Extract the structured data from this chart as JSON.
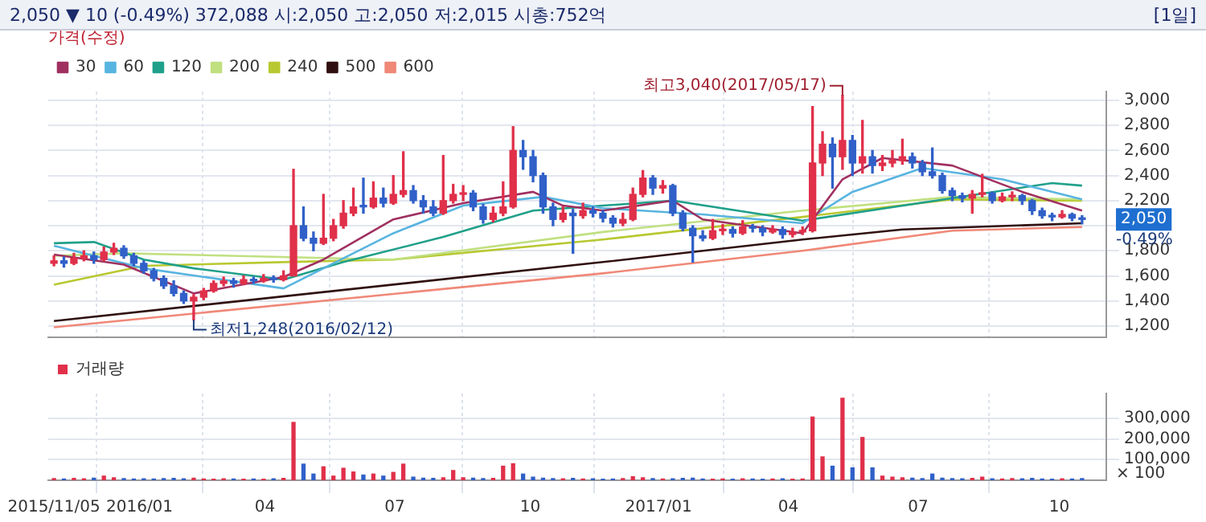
{
  "chart_data": [
    {
      "type": "candlestick",
      "title": "2,050 ▼ 10 (-0.49%)  372,088  시:2,050  고:2,050  저:2,015  시총:752억",
      "subtitle": "[1일]",
      "legend_title": "가격(수정)",
      "legend": "top left",
      "grid": true,
      "tick_labels": "y",
      "marker": "none",
      "x": [
        "2015-11-05",
        "2015-11-12",
        "2015-11-19",
        "2015-11-26",
        "2015-12-03",
        "2015-12-10",
        "2015-12-17",
        "2015-12-24",
        "2015-12-31",
        "2016-01-07",
        "2016-01-14",
        "2016-01-21",
        "2016-01-28",
        "2016-02-04",
        "2016-02-11",
        "2016-02-18",
        "2016-02-25",
        "2016-03-03",
        "2016-03-10",
        "2016-03-17",
        "2016-03-24",
        "2016-03-31",
        "2016-04-07",
        "2016-04-14",
        "2016-04-21",
        "2016-04-28",
        "2016-05-05",
        "2016-05-12",
        "2016-05-19",
        "2016-05-26",
        "2016-06-02",
        "2016-06-09",
        "2016-06-16",
        "2016-06-23",
        "2016-06-30",
        "2016-07-07",
        "2016-07-14",
        "2016-07-21",
        "2016-07-28",
        "2016-08-04",
        "2016-08-11",
        "2016-08-18",
        "2016-08-25",
        "2016-09-01",
        "2016-09-08",
        "2016-09-15",
        "2016-09-22",
        "2016-09-29",
        "2016-10-06",
        "2016-10-13",
        "2016-10-20",
        "2016-10-27",
        "2016-11-03",
        "2016-11-10",
        "2016-11-17",
        "2016-11-24",
        "2016-12-01",
        "2016-12-08",
        "2016-12-15",
        "2016-12-22",
        "2016-12-29",
        "2017-01-05",
        "2017-01-12",
        "2017-01-19",
        "2017-01-26",
        "2017-02-02",
        "2017-02-09",
        "2017-02-16",
        "2017-02-23",
        "2017-03-02",
        "2017-03-09",
        "2017-03-16",
        "2017-03-23",
        "2017-03-30",
        "2017-04-06",
        "2017-04-13",
        "2017-04-20",
        "2017-04-27",
        "2017-05-04",
        "2017-05-11",
        "2017-05-18",
        "2017-05-25",
        "2017-06-01",
        "2017-06-08",
        "2017-06-15",
        "2017-06-22",
        "2017-06-29",
        "2017-07-06",
        "2017-07-13",
        "2017-07-20",
        "2017-07-27",
        "2017-08-03",
        "2017-08-10",
        "2017-08-17",
        "2017-08-24",
        "2017-08-31",
        "2017-09-07",
        "2017-09-14",
        "2017-09-21",
        "2017-09-28",
        "2017-10-05",
        "2017-10-12",
        "2017-10-19",
        "2017-10-26"
      ],
      "ohlc": [
        [
          1700,
          1760,
          1680,
          1720
        ],
        [
          1720,
          1750,
          1670,
          1700
        ],
        [
          1700,
          1780,
          1690,
          1740
        ],
        [
          1740,
          1800,
          1720,
          1760
        ],
        [
          1760,
          1790,
          1700,
          1730
        ],
        [
          1730,
          1830,
          1720,
          1790
        ],
        [
          1790,
          1860,
          1770,
          1820
        ],
        [
          1820,
          1840,
          1740,
          1760
        ],
        [
          1760,
          1780,
          1680,
          1700
        ],
        [
          1700,
          1720,
          1620,
          1640
        ],
        [
          1640,
          1660,
          1560,
          1580
        ],
        [
          1580,
          1600,
          1500,
          1520
        ],
        [
          1520,
          1560,
          1440,
          1460
        ],
        [
          1460,
          1480,
          1380,
          1400
        ],
        [
          1400,
          1450,
          1248,
          1430
        ],
        [
          1430,
          1500,
          1410,
          1480
        ],
        [
          1480,
          1560,
          1470,
          1540
        ],
        [
          1540,
          1590,
          1520,
          1560
        ],
        [
          1560,
          1580,
          1510,
          1540
        ],
        [
          1540,
          1600,
          1530,
          1570
        ],
        [
          1570,
          1590,
          1540,
          1560
        ],
        [
          1560,
          1610,
          1550,
          1580
        ],
        [
          1580,
          1600,
          1550,
          1570
        ],
        [
          1570,
          1640,
          1560,
          1600
        ],
        [
          1600,
          2450,
          1600,
          2000
        ],
        [
          2000,
          2150,
          1880,
          1900
        ],
        [
          1900,
          1950,
          1800,
          1860
        ],
        [
          1860,
          2250,
          1850,
          1900
        ],
        [
          1900,
          2050,
          1880,
          2000
        ],
        [
          2000,
          2200,
          1980,
          2100
        ],
        [
          2100,
          2300,
          2080,
          2150
        ],
        [
          2150,
          2380,
          2100,
          2150
        ],
        [
          2150,
          2350,
          2140,
          2220
        ],
        [
          2220,
          2300,
          2150,
          2180
        ],
        [
          2180,
          2400,
          2170,
          2250
        ],
        [
          2250,
          2590,
          2230,
          2280
        ],
        [
          2280,
          2320,
          2180,
          2200
        ],
        [
          2200,
          2240,
          2100,
          2150
        ],
        [
          2150,
          2200,
          2080,
          2100
        ],
        [
          2100,
          2560,
          2090,
          2200
        ],
        [
          2200,
          2330,
          2180,
          2250
        ],
        [
          2250,
          2320,
          2200,
          2260
        ],
        [
          2260,
          2280,
          2120,
          2150
        ],
        [
          2150,
          2170,
          2020,
          2050
        ],
        [
          2050,
          2150,
          2030,
          2100
        ],
        [
          2100,
          2350,
          2080,
          2150
        ],
        [
          2150,
          2790,
          2140,
          2600
        ],
        [
          2600,
          2680,
          2450,
          2550
        ],
        [
          2550,
          2600,
          2350,
          2400
        ],
        [
          2400,
          2420,
          2100,
          2150
        ],
        [
          2150,
          2180,
          2000,
          2050
        ],
        [
          2050,
          2150,
          2030,
          2100
        ],
        [
          2100,
          2130,
          1780,
          2080
        ],
        [
          2080,
          2180,
          2060,
          2120
        ],
        [
          2120,
          2150,
          2070,
          2100
        ],
        [
          2100,
          2120,
          2030,
          2060
        ],
        [
          2060,
          2080,
          1990,
          2020
        ],
        [
          2020,
          2100,
          2000,
          2050
        ],
        [
          2050,
          2300,
          2040,
          2250
        ],
        [
          2250,
          2440,
          2230,
          2380
        ],
        [
          2380,
          2400,
          2250,
          2300
        ],
        [
          2300,
          2360,
          2260,
          2320
        ],
        [
          2320,
          2330,
          2080,
          2100
        ],
        [
          2100,
          2120,
          1960,
          1980
        ],
        [
          1980,
          2000,
          1710,
          1920
        ],
        [
          1920,
          1960,
          1880,
          1900
        ],
        [
          1900,
          2050,
          1890,
          1960
        ],
        [
          1960,
          2010,
          1930,
          1970
        ],
        [
          1970,
          1990,
          1910,
          1940
        ],
        [
          1940,
          2040,
          1930,
          1990
        ],
        [
          1990,
          2010,
          1950,
          1980
        ],
        [
          1980,
          2000,
          1920,
          1950
        ],
        [
          1950,
          2000,
          1940,
          1970
        ],
        [
          1970,
          1990,
          1900,
          1930
        ],
        [
          1930,
          1980,
          1910,
          1950
        ],
        [
          1950,
          1990,
          1930,
          1960
        ],
        [
          1960,
          2950,
          1950,
          2500
        ],
        [
          2500,
          2750,
          2400,
          2650
        ],
        [
          2650,
          2700,
          2300,
          2550
        ],
        [
          2550,
          3040,
          2450,
          2680
        ],
        [
          2680,
          2720,
          2400,
          2500
        ],
        [
          2500,
          2840,
          2420,
          2550
        ],
        [
          2550,
          2600,
          2420,
          2480
        ],
        [
          2480,
          2560,
          2440,
          2500
        ],
        [
          2500,
          2600,
          2470,
          2520
        ],
        [
          2520,
          2690,
          2490,
          2550
        ],
        [
          2550,
          2580,
          2460,
          2500
        ],
        [
          2500,
          2520,
          2400,
          2430
        ],
        [
          2430,
          2620,
          2380,
          2400
        ],
        [
          2400,
          2420,
          2260,
          2280
        ],
        [
          2280,
          2300,
          2200,
          2240
        ],
        [
          2240,
          2260,
          2190,
          2220
        ],
        [
          2220,
          2280,
          2100,
          2250
        ],
        [
          2250,
          2410,
          2230,
          2260
        ],
        [
          2260,
          2270,
          2180,
          2200
        ],
        [
          2200,
          2260,
          2190,
          2230
        ],
        [
          2230,
          2270,
          2200,
          2240
        ],
        [
          2240,
          2250,
          2170,
          2200
        ],
        [
          2200,
          2210,
          2090,
          2120
        ],
        [
          2120,
          2140,
          2060,
          2080
        ],
        [
          2080,
          2100,
          2040,
          2070
        ],
        [
          2070,
          2120,
          2060,
          2090
        ],
        [
          2090,
          2100,
          2040,
          2060
        ],
        [
          2060,
          2080,
          2015,
          2050
        ]
      ],
      "colors": [
        "#e0304a",
        "#3060c8",
        "#e0304a",
        "#e0304a",
        "#3060c8",
        "#e0304a",
        "#e0304a",
        "#3060c8",
        "#3060c8",
        "#3060c8",
        "#3060c8",
        "#3060c8",
        "#3060c8",
        "#3060c8",
        "#e0304a",
        "#e0304a",
        "#e0304a",
        "#e0304a",
        "#3060c8",
        "#e0304a",
        "#3060c8",
        "#e0304a",
        "#3060c8",
        "#e0304a",
        "#e0304a",
        "#3060c8",
        "#3060c8",
        "#e0304a",
        "#e0304a",
        "#e0304a",
        "#e0304a",
        "#3060c8",
        "#e0304a",
        "#3060c8",
        "#e0304a",
        "#e0304a",
        "#3060c8",
        "#3060c8",
        "#3060c8",
        "#e0304a",
        "#e0304a",
        "#e0304a",
        "#3060c8",
        "#3060c8",
        "#e0304a",
        "#e0304a",
        "#e0304a",
        "#3060c8",
        "#3060c8",
        "#3060c8",
        "#3060c8",
        "#e0304a",
        "#3060c8",
        "#e0304a",
        "#3060c8",
        "#3060c8",
        "#3060c8",
        "#e0304a",
        "#e0304a",
        "#e0304a",
        "#3060c8",
        "#e0304a",
        "#3060c8",
        "#3060c8",
        "#3060c8",
        "#3060c8",
        "#e0304a",
        "#e0304a",
        "#3060c8",
        "#e0304a",
        "#3060c8",
        "#3060c8",
        "#e0304a",
        "#3060c8",
        "#e0304a",
        "#e0304a",
        "#e0304a",
        "#e0304a",
        "#3060c8",
        "#e0304a",
        "#3060c8",
        "#e0304a",
        "#3060c8",
        "#e0304a",
        "#e0304a",
        "#e0304a",
        "#3060c8",
        "#3060c8",
        "#3060c8",
        "#3060c8",
        "#3060c8",
        "#3060c8",
        "#e0304a",
        "#e0304a",
        "#3060c8",
        "#e0304a",
        "#e0304a",
        "#3060c8",
        "#3060c8",
        "#3060c8",
        "#3060c8",
        "#e0304a",
        "#3060c8",
        "#3060c8"
      ],
      "series": [
        {
          "name": "30",
          "type": "line",
          "color": "#a03060",
          "x": [
            "2015-11-05",
            "2015-12-24",
            "2016-02-11",
            "2016-04-14",
            "2016-05-12",
            "2016-06-30",
            "2016-08-18",
            "2016-10-06",
            "2016-10-27",
            "2016-11-24",
            "2017-01-12",
            "2017-02-02",
            "2017-04-13",
            "2017-05-11",
            "2017-06-08",
            "2017-07-27",
            "2017-09-14",
            "2017-10-26"
          ],
          "values": [
            1770,
            1690,
            1460,
            1590,
            1730,
            2050,
            2180,
            2270,
            2160,
            2120,
            2200,
            2050,
            1940,
            2370,
            2540,
            2480,
            2270,
            2120
          ]
        },
        {
          "name": "60",
          "type": "line",
          "color": "#58b4e0",
          "x": [
            "2015-11-05",
            "2016-01-07",
            "2016-04-14",
            "2016-05-12",
            "2016-06-30",
            "2016-08-18",
            "2016-10-13",
            "2016-11-24",
            "2017-02-02",
            "2017-04-13",
            "2017-05-18",
            "2017-07-06",
            "2017-08-31",
            "2017-10-26"
          ],
          "values": [
            1840,
            1660,
            1500,
            1660,
            1940,
            2160,
            2230,
            2140,
            2090,
            2020,
            2270,
            2460,
            2370,
            2210
          ]
        },
        {
          "name": "120",
          "type": "line",
          "color": "#20a08a",
          "x": [
            "2015-11-05",
            "2015-12-03",
            "2016-01-07",
            "2016-02-11",
            "2016-04-14",
            "2016-05-26",
            "2016-08-04",
            "2016-10-06",
            "2016-11-24",
            "2017-01-12",
            "2017-04-13",
            "2017-07-27",
            "2017-10-05",
            "2017-10-26"
          ],
          "values": [
            1860,
            1870,
            1730,
            1660,
            1570,
            1710,
            1910,
            2120,
            2160,
            2200,
            2040,
            2220,
            2340,
            2320
          ]
        },
        {
          "name": "200",
          "type": "line",
          "color": "#c0e080",
          "x": [
            "2015-11-05",
            "2015-12-24",
            "2016-06-30",
            "2016-11-24",
            "2017-04-13",
            "2017-07-27",
            "2017-10-26"
          ],
          "values": [
            1760,
            1780,
            1730,
            1950,
            2120,
            2230,
            2210
          ]
        },
        {
          "name": "240",
          "type": "line",
          "color": "#b8c830",
          "x": [
            "2015-11-05",
            "2016-01-07",
            "2016-04-14",
            "2016-06-30",
            "2016-11-24",
            "2017-04-13",
            "2017-07-27",
            "2017-10-26"
          ],
          "values": [
            1530,
            1680,
            1710,
            1730,
            1890,
            2070,
            2210,
            2200
          ]
        },
        {
          "name": "500",
          "type": "line",
          "color": "#301010",
          "x": [
            "2015-11-05",
            "2016-11-24",
            "2017-04-13",
            "2017-06-22",
            "2017-10-26"
          ],
          "values": [
            1240,
            1710,
            1890,
            1970,
            2020
          ]
        },
        {
          "name": "600",
          "type": "line",
          "color": "#f08878",
          "x": [
            "2015-11-05",
            "2016-11-24",
            "2017-04-13",
            "2017-07-27",
            "2017-10-26"
          ],
          "values": [
            1190,
            1620,
            1800,
            1960,
            1990
          ]
        }
      ],
      "annotations": [
        {
          "text": "최고3,040(2017/05/17)",
          "x": "2017-05-11",
          "y": 3040
        },
        {
          "text": "최저1,248(2016/02/12)",
          "x": "2016-02-11",
          "y": 1248
        },
        "2,050",
        "-0.49%"
      ],
      "xlim": [
        "2015-11-01",
        "2017-11-12"
      ],
      "xticks": [
        {
          "value": "2015-11-05",
          "label": null
        },
        {
          "value": "2016-01-04",
          "label": null
        },
        {
          "value": "2016-04-01",
          "label": null
        },
        {
          "value": "2016-07-01",
          "label": null
        },
        {
          "value": "2016-10-04",
          "label": null
        },
        {
          "value": "2017-01-02",
          "label": null
        },
        {
          "value": "2017-04-03",
          "label": null
        },
        {
          "value": "2017-07-03",
          "label": null
        },
        {
          "value": "2017-10-10",
          "label": null
        }
      ],
      "ylim": [
        1110,
        3070
      ],
      "yticks": [
        {
          "value": 1200,
          "label": "1,200"
        },
        {
          "value": 1400,
          "label": "1,400"
        },
        {
          "value": 1600,
          "label": "1,600"
        },
        {
          "value": 1800,
          "label": "1,800"
        },
        {
          "value": 2000,
          "label": null
        },
        {
          "value": 2200,
          "label": "2,200"
        },
        {
          "value": 2400,
          "label": "2,400"
        },
        {
          "value": 2600,
          "label": "2,600"
        },
        {
          "value": 2800,
          "label": "2,800"
        },
        {
          "value": 3000,
          "label": "3,000"
        }
      ]
    },
    {
      "type": "bar",
      "legend": "top left",
      "grid": true,
      "x": [
        "2015-11-05",
        "2015-11-12",
        "2015-11-19",
        "2015-11-26",
        "2015-12-03",
        "2015-12-10",
        "2015-12-17",
        "2015-12-24",
        "2015-12-31",
        "2016-01-07",
        "2016-01-14",
        "2016-01-21",
        "2016-01-28",
        "2016-02-04",
        "2016-02-11",
        "2016-02-18",
        "2016-02-25",
        "2016-03-03",
        "2016-03-10",
        "2016-03-17",
        "2016-03-24",
        "2016-03-31",
        "2016-04-07",
        "2016-04-14",
        "2016-04-21",
        "2016-04-28",
        "2016-05-05",
        "2016-05-12",
        "2016-05-19",
        "2016-05-26",
        "2016-06-02",
        "2016-06-09",
        "2016-06-16",
        "2016-06-23",
        "2016-06-30",
        "2016-07-07",
        "2016-07-14",
        "2016-07-21",
        "2016-07-28",
        "2016-08-04",
        "2016-08-11",
        "2016-08-18",
        "2016-08-25",
        "2016-09-01",
        "2016-09-08",
        "2016-09-15",
        "2016-09-22",
        "2016-09-29",
        "2016-10-06",
        "2016-10-13",
        "2016-10-20",
        "2016-10-27",
        "2016-11-03",
        "2016-11-10",
        "2016-11-17",
        "2016-11-24",
        "2016-12-01",
        "2016-12-08",
        "2016-12-15",
        "2016-12-22",
        "2016-12-29",
        "2017-01-05",
        "2017-01-12",
        "2017-01-19",
        "2017-01-26",
        "2017-02-02",
        "2017-02-09",
        "2017-02-16",
        "2017-02-23",
        "2017-03-02",
        "2017-03-09",
        "2017-03-16",
        "2017-03-23",
        "2017-03-30",
        "2017-04-06",
        "2017-04-13",
        "2017-04-20",
        "2017-04-27",
        "2017-05-04",
        "2017-05-11",
        "2017-05-18",
        "2017-05-25",
        "2017-06-01",
        "2017-06-08",
        "2017-06-15",
        "2017-06-22",
        "2017-06-29",
        "2017-07-06",
        "2017-07-13",
        "2017-07-20",
        "2017-07-27",
        "2017-08-03",
        "2017-08-10",
        "2017-08-17",
        "2017-08-24",
        "2017-08-31",
        "2017-09-07",
        "2017-09-14",
        "2017-09-21",
        "2017-09-28",
        "2017-10-05",
        "2017-10-12",
        "2017-10-19",
        "2017-10-26"
      ],
      "series": [
        {
          "name": "거래량",
          "color": "#c8a020",
          "values": [
            8000,
            6000,
            9000,
            7000,
            10000,
            20000,
            12000,
            8000,
            6000,
            7000,
            6000,
            8000,
            9000,
            7000,
            10000,
            6000,
            5000,
            7000,
            6000,
            5000,
            6000,
            5000,
            7000,
            9000,
            280000,
            78000,
            30000,
            65000,
            20000,
            58000,
            40000,
            25000,
            30000,
            20000,
            38000,
            78000,
            15000,
            10000,
            9000,
            12000,
            47000,
            12000,
            10000,
            8000,
            9000,
            68000,
            80000,
            30000,
            15000,
            10000,
            8000,
            7000,
            9000,
            6000,
            7000,
            5000,
            6000,
            8000,
            17000,
            12000,
            8000,
            6000,
            7000,
            9000,
            10000,
            6000,
            5000,
            6000,
            5000,
            7000,
            6000,
            5000,
            6000,
            7000,
            5000,
            6000,
            306000,
            113000,
            68000,
            397000,
            60000,
            207000,
            60000,
            20000,
            15000,
            12000,
            10000,
            8000,
            30000,
            10000,
            8000,
            7000,
            9000,
            15000,
            7000,
            6000,
            8000,
            7000,
            9000,
            6000,
            5000,
            7000,
            6000,
            8000
          ],
          "colors": [
            "#e0304a",
            "#3060c8",
            "#e0304a",
            "#e0304a",
            "#3060c8",
            "#e0304a",
            "#e0304a",
            "#3060c8",
            "#3060c8",
            "#3060c8",
            "#3060c8",
            "#3060c8",
            "#3060c8",
            "#3060c8",
            "#e0304a",
            "#e0304a",
            "#e0304a",
            "#e0304a",
            "#3060c8",
            "#e0304a",
            "#3060c8",
            "#e0304a",
            "#3060c8",
            "#e0304a",
            "#e0304a",
            "#3060c8",
            "#3060c8",
            "#e0304a",
            "#e0304a",
            "#e0304a",
            "#e0304a",
            "#3060c8",
            "#e0304a",
            "#3060c8",
            "#e0304a",
            "#e0304a",
            "#3060c8",
            "#3060c8",
            "#3060c8",
            "#e0304a",
            "#e0304a",
            "#e0304a",
            "#3060c8",
            "#3060c8",
            "#e0304a",
            "#e0304a",
            "#e0304a",
            "#3060c8",
            "#3060c8",
            "#3060c8",
            "#3060c8",
            "#e0304a",
            "#3060c8",
            "#e0304a",
            "#3060c8",
            "#3060c8",
            "#3060c8",
            "#e0304a",
            "#e0304a",
            "#e0304a",
            "#3060c8",
            "#e0304a",
            "#3060c8",
            "#3060c8",
            "#3060c8",
            "#3060c8",
            "#e0304a",
            "#e0304a",
            "#3060c8",
            "#e0304a",
            "#3060c8",
            "#3060c8",
            "#e0304a",
            "#3060c8",
            "#e0304a",
            "#e0304a",
            "#e0304a",
            "#e0304a",
            "#3060c8",
            "#e0304a",
            "#3060c8",
            "#e0304a",
            "#3060c8",
            "#e0304a",
            "#e0304a",
            "#e0304a",
            "#3060c8",
            "#3060c8",
            "#3060c8",
            "#3060c8",
            "#3060c8",
            "#3060c8",
            "#e0304a",
            "#e0304a",
            "#3060c8",
            "#e0304a",
            "#e0304a",
            "#3060c8",
            "#3060c8",
            "#3060c8",
            "#3060c8",
            "#e0304a",
            "#3060c8",
            "#3060c8"
          ]
        }
      ],
      "xlim": [
        "2015-11-01",
        "2017-11-12"
      ],
      "xticks": [
        {
          "value": "2015-11-05",
          "label": "2015/11/05"
        },
        {
          "value": "2016-01-04",
          "label": "2016/01"
        },
        {
          "value": "2016-04-01",
          "label": "04"
        },
        {
          "value": "2016-07-01",
          "label": "07"
        },
        {
          "value": "2016-10-04",
          "label": "10"
        },
        {
          "value": "2017-01-02",
          "label": "2017/01"
        },
        {
          "value": "2017-04-03",
          "label": "04"
        },
        {
          "value": "2017-07-03",
          "label": "07"
        },
        {
          "value": "2017-10-10",
          "label": "10"
        }
      ],
      "ylim": [
        0,
        420000
      ],
      "ylabel": "× 100",
      "yticks": [
        {
          "value": 100000,
          "label": "100,000"
        },
        {
          "value": 200000,
          "label": "200,000"
        },
        {
          "value": 300000,
          "label": "300,000"
        }
      ]
    }
  ]
}
